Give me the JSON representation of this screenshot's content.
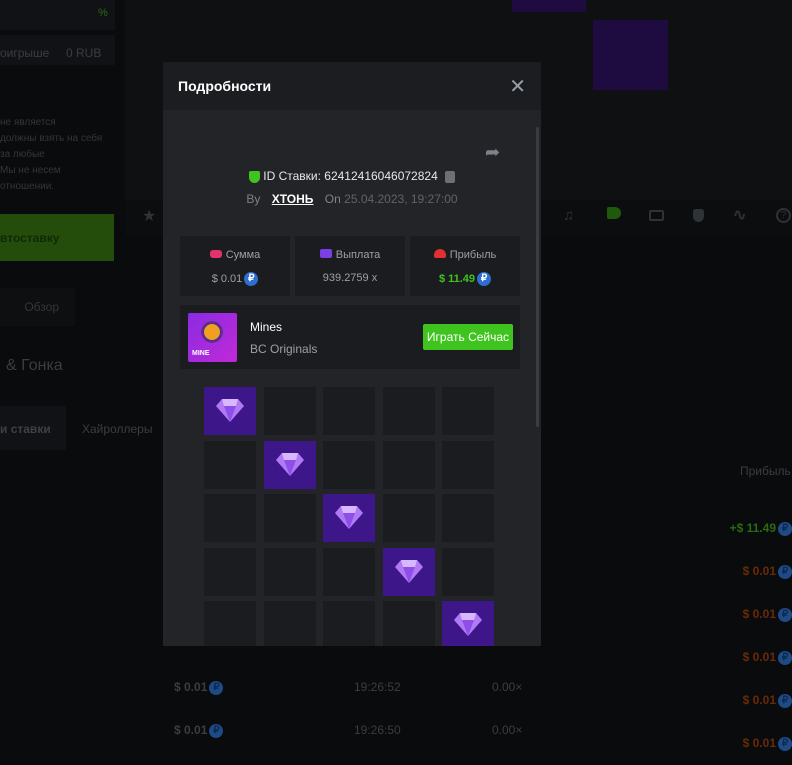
{
  "background": {
    "percent_sign": "%",
    "loss_label": "оигрыше",
    "loss_value": "0 RUB",
    "disclaimer": [
      "не является",
      "должны взять на себя",
      "за любые",
      "Мы не несем",
      "отношении."
    ],
    "autobet_button": "втоставку",
    "overview_tab": "Обзор",
    "race_title": "& Гонка",
    "tabs": [
      "и ставки",
      "Хайроллеры"
    ],
    "profit_header": "Прибыль",
    "profits": [
      "+$ 11.49",
      "$ 0.01",
      "$ 0.01",
      "$ 0.01",
      "$ 0.01",
      "$ 0.01"
    ],
    "rows": [
      {
        "amount": "$ 0.01",
        "time": "19:26:52",
        "multiplier": "0.00×"
      },
      {
        "amount": "$ 0.01",
        "time": "19:26:50",
        "multiplier": "0.00×"
      }
    ],
    "toolbar_icons": [
      "star-icon",
      "music-off-icon",
      "volume-icon",
      "keyboard-icon",
      "acorn-icon",
      "curve-icon",
      "help-icon"
    ]
  },
  "modal": {
    "title": "Подробности",
    "bet_id_label": "ID Ставки: 62412416046072824",
    "by_label": "By",
    "user": "ХТОНЬ",
    "on_label": "On",
    "date": "25.04.2023, 19:27:00",
    "stats": [
      {
        "label": "Сумма",
        "value": "$ 0.01",
        "icon_color": "#e0336b"
      },
      {
        "label": "Выплата",
        "value": "939.2759 x",
        "icon_color": "#7b3fe4"
      },
      {
        "label": "Прибыль",
        "value": "$ 11.49",
        "icon_color": "#e03030",
        "value_color": "#3fc41f"
      }
    ],
    "game": {
      "name": "Mines",
      "provider": "BC Originals",
      "thumb_text": "MINE",
      "play_button": "Играть Сейчас"
    },
    "grid_gems": [
      [
        0,
        0
      ],
      [
        1,
        1
      ],
      [
        2,
        2
      ],
      [
        3,
        3
      ],
      [
        4,
        4
      ]
    ],
    "accent": "#3fc41f"
  }
}
